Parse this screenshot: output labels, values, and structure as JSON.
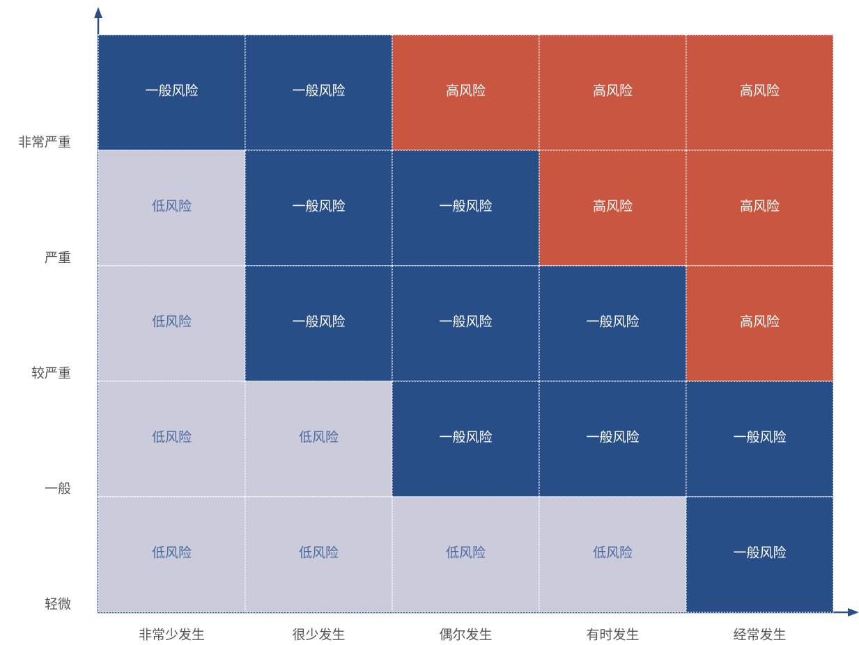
{
  "matrix": {
    "y_labels": [
      "非常严重",
      "严重",
      "较严重",
      "一般",
      "轻微"
    ],
    "x_labels": [
      "非常少发生",
      "很少发生",
      "偶尔发生",
      "有时发生",
      "经常发生"
    ],
    "rows": [
      [
        {
          "label": "一般风险",
          "color": "#274e87",
          "text_color": "#ffffff"
        },
        {
          "label": "一般风险",
          "color": "#274e87",
          "text_color": "#ffffff"
        },
        {
          "label": "高风险",
          "color": "#c85640",
          "text_color": "#ffffff"
        },
        {
          "label": "高风险",
          "color": "#c85640",
          "text_color": "#ffffff"
        },
        {
          "label": "高风险",
          "color": "#c85640",
          "text_color": "#ffffff"
        }
      ],
      [
        {
          "label": "低风险",
          "color": "#cccbdc",
          "text_color": "#4a6a9c"
        },
        {
          "label": "一般风险",
          "color": "#274e87",
          "text_color": "#ffffff"
        },
        {
          "label": "一般风险",
          "color": "#274e87",
          "text_color": "#ffffff"
        },
        {
          "label": "高风险",
          "color": "#c85640",
          "text_color": "#ffffff"
        },
        {
          "label": "高风险",
          "color": "#c85640",
          "text_color": "#ffffff"
        }
      ],
      [
        {
          "label": "低风险",
          "color": "#cccbdc",
          "text_color": "#4a6a9c"
        },
        {
          "label": "一般风险",
          "color": "#274e87",
          "text_color": "#ffffff"
        },
        {
          "label": "一般风险",
          "color": "#274e87",
          "text_color": "#ffffff"
        },
        {
          "label": "一般风险",
          "color": "#274e87",
          "text_color": "#ffffff"
        },
        {
          "label": "高风险",
          "color": "#c85640",
          "text_color": "#ffffff"
        }
      ],
      [
        {
          "label": "低风险",
          "color": "#cccbdc",
          "text_color": "#4a6a9c"
        },
        {
          "label": "低风险",
          "color": "#cccbdc",
          "text_color": "#4a6a9c"
        },
        {
          "label": "一般风险",
          "color": "#274e87",
          "text_color": "#ffffff"
        },
        {
          "label": "一般风险",
          "color": "#274e87",
          "text_color": "#ffffff"
        },
        {
          "label": "一般风险",
          "color": "#274e87",
          "text_color": "#ffffff"
        }
      ],
      [
        {
          "label": "低风险",
          "color": "#cccbdc",
          "text_color": "#4a6a9c"
        },
        {
          "label": "低风险",
          "color": "#cccbdc",
          "text_color": "#4a6a9c"
        },
        {
          "label": "低风险",
          "color": "#cccbdc",
          "text_color": "#4a6a9c"
        },
        {
          "label": "低风险",
          "color": "#cccbdc",
          "text_color": "#4a6a9c"
        },
        {
          "label": "一般风险",
          "color": "#274e87",
          "text_color": "#ffffff"
        }
      ]
    ]
  }
}
